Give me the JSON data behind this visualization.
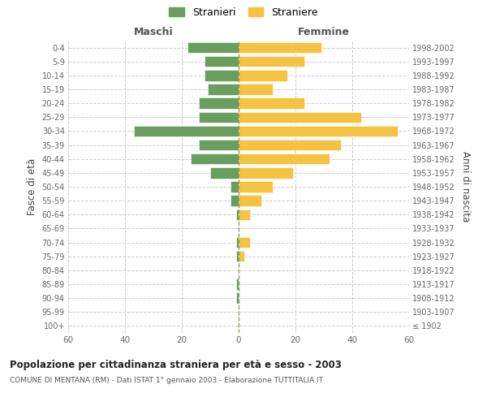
{
  "age_groups": [
    "100+",
    "95-99",
    "90-94",
    "85-89",
    "80-84",
    "75-79",
    "70-74",
    "65-69",
    "60-64",
    "55-59",
    "50-54",
    "45-49",
    "40-44",
    "35-39",
    "30-34",
    "25-29",
    "20-24",
    "15-19",
    "10-14",
    "5-9",
    "0-4"
  ],
  "birth_years": [
    "≤ 1902",
    "1903-1907",
    "1908-1912",
    "1913-1917",
    "1918-1922",
    "1923-1927",
    "1928-1932",
    "1933-1937",
    "1938-1942",
    "1943-1947",
    "1948-1952",
    "1953-1957",
    "1958-1962",
    "1963-1967",
    "1968-1972",
    "1973-1977",
    "1978-1982",
    "1983-1987",
    "1988-1992",
    "1993-1997",
    "1998-2002"
  ],
  "maschi": [
    0,
    0,
    1,
    1,
    0,
    1,
    1,
    0,
    1,
    3,
    3,
    10,
    17,
    14,
    37,
    14,
    14,
    11,
    12,
    12,
    18
  ],
  "femmine": [
    0,
    0,
    0,
    0,
    0,
    2,
    4,
    0,
    4,
    8,
    12,
    19,
    32,
    36,
    56,
    43,
    23,
    12,
    17,
    23,
    29
  ],
  "color_maschi": "#6a9e5e",
  "color_femmine": "#f5c242",
  "title": "Popolazione per cittadinanza straniera per età e sesso - 2003",
  "subtitle": "COMUNE DI MENTANA (RM) - Dati ISTAT 1° gennaio 2003 - Elaborazione TUTTITALIA.IT",
  "ylabel_left": "Fasce di età",
  "ylabel_right": "Anni di nascita",
  "xlabel_left": "Maschi",
  "xlabel_right": "Femmine",
  "legend_stranieri": "Stranieri",
  "legend_straniere": "Straniere",
  "xlim": 60,
  "background_color": "#ffffff",
  "grid_color": "#cccccc"
}
